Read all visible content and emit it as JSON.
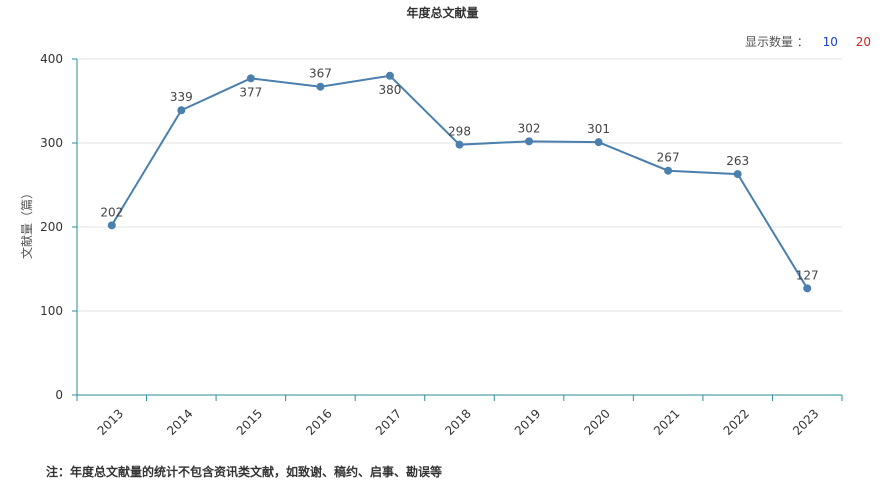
{
  "title": "年度总文献量",
  "display_count": {
    "label": "显示数量 ：",
    "options": [
      "10",
      "20"
    ],
    "colors": {
      "opt10": "#1a3fd0",
      "opt20": "#d21f1f"
    }
  },
  "note": "注：年度总文献量的统计不包含资讯类文献，如致谢、稿约、启事、勘误等",
  "chart_data": {
    "type": "line",
    "title": "年度总文献量",
    "xlabel": "",
    "ylabel": "文献量（篇）",
    "ylim": [
      0,
      400
    ],
    "yticks": [
      0,
      100,
      200,
      300,
      400
    ],
    "grid": true,
    "categories": [
      "2013",
      "2014",
      "2015",
      "2016",
      "2017",
      "2018",
      "2019",
      "2020",
      "2021",
      "2022",
      "2023"
    ],
    "series": [
      {
        "values": [
          202,
          339,
          377,
          367,
          380,
          298,
          302,
          301,
          267,
          263,
          127
        ],
        "labels": [
          "202",
          "339",
          "377",
          "367",
          "380",
          "298",
          "302",
          "301",
          "267",
          "263",
          "127"
        ],
        "label_position": [
          "above",
          "above",
          "below",
          "above",
          "below",
          "above",
          "above",
          "above",
          "above",
          "above",
          "above"
        ],
        "color": "#4a7fae"
      }
    ],
    "colors": {
      "axis": "#2a8f9a",
      "grid": "#e3e3e3",
      "line": "#4a7fae"
    }
  }
}
